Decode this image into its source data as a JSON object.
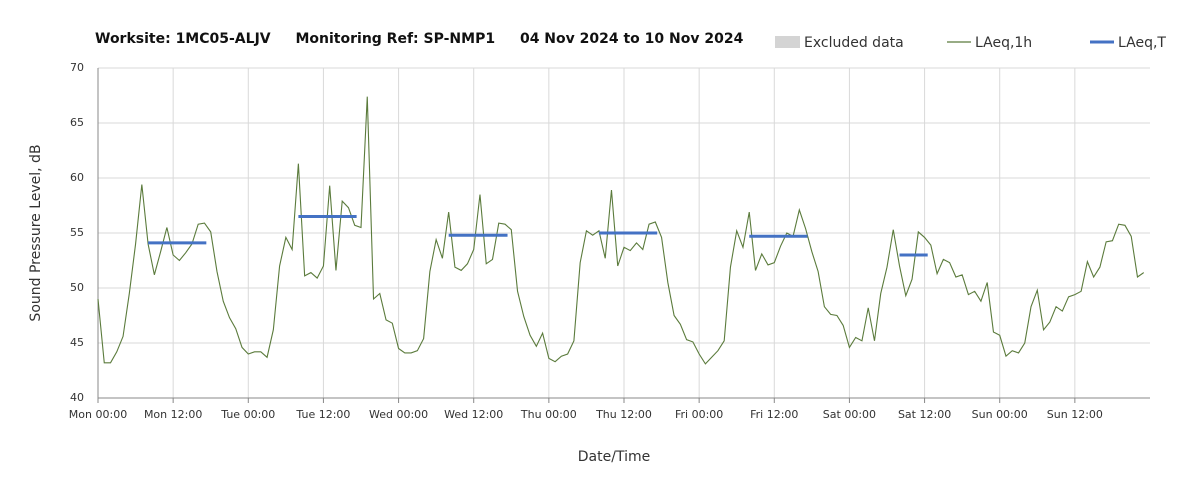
{
  "chart_data": {
    "type": "line",
    "title_parts": [
      "Worksite: 1MC05-ALJV",
      "Monitoring Ref: SP-NMP1",
      "04 Nov 2024 to 10 Nov 2024"
    ],
    "xlabel": "Date/Time",
    "ylabel": "Sound Pressure Level, dB",
    "legend": [
      {
        "name": "Excluded data",
        "color": "#d4d4d4"
      }
    ],
    "xlim": [
      0,
      168
    ],
    "xticks": [
      {
        "value": 0,
        "label": "Mon 00:00"
      },
      {
        "value": 12,
        "label": "Mon 12:00"
      },
      {
        "value": 24,
        "label": "Tue 00:00"
      },
      {
        "value": 36,
        "label": "Tue 12:00"
      },
      {
        "value": 48,
        "label": "Wed 00:00"
      },
      {
        "value": 60,
        "label": "Wed 12:00"
      },
      {
        "value": 72,
        "label": "Thu 00:00"
      },
      {
        "value": 84,
        "label": "Thu 12:00"
      },
      {
        "value": 96,
        "label": "Fri 00:00"
      },
      {
        "value": 108,
        "label": "Fri 12:00"
      },
      {
        "value": 120,
        "label": "Sat 00:00"
      },
      {
        "value": 132,
        "label": "Sat 12:00"
      },
      {
        "value": 144,
        "label": "Sun 00:00"
      },
      {
        "value": 156,
        "label": "Sun 12:00"
      }
    ],
    "ylim": [
      40,
      70
    ],
    "yticks": [
      40,
      45,
      50,
      55,
      60,
      65,
      70
    ],
    "grid": true,
    "x": [
      0,
      1,
      2,
      3,
      4,
      5,
      6,
      7,
      8,
      9,
      10,
      11,
      12,
      13,
      14,
      15,
      16,
      17,
      18,
      19,
      20,
      21,
      22,
      23,
      24,
      25,
      26,
      27,
      28,
      29,
      30,
      31,
      32,
      33,
      34,
      35,
      36,
      37,
      38,
      39,
      40,
      41,
      42,
      43,
      44,
      45,
      46,
      47,
      48,
      49,
      50,
      51,
      52,
      53,
      54,
      55,
      56,
      57,
      58,
      59,
      60,
      61,
      62,
      63,
      64,
      65,
      66,
      67,
      68,
      69,
      70,
      71,
      72,
      73,
      74,
      75,
      76,
      77,
      78,
      79,
      80,
      81,
      82,
      83,
      84,
      85,
      86,
      87,
      88,
      89,
      90,
      91,
      92,
      93,
      94,
      95,
      96,
      97,
      98,
      99,
      100,
      101,
      102,
      103,
      104,
      105,
      106,
      107,
      108,
      109,
      110,
      111,
      112,
      113,
      114,
      115,
      116,
      117,
      118,
      119,
      120,
      121,
      122,
      123,
      124,
      125,
      126,
      127,
      128,
      129,
      130,
      131,
      132,
      133,
      134,
      135,
      136,
      137,
      138,
      139,
      140,
      141,
      142,
      143,
      144,
      145,
      146,
      147,
      148,
      149,
      150,
      151,
      152,
      153,
      154,
      155,
      156,
      157,
      158,
      159,
      160,
      161,
      162,
      163,
      164,
      165,
      166,
      167
    ],
    "series": [
      {
        "name": "LAeq,1h",
        "color": "#5b7b3c",
        "values": [
          49,
          43.2,
          43.2,
          44.2,
          45.6,
          49.5,
          54,
          59.4,
          54,
          51.2,
          53.3,
          55.5,
          53,
          52.5,
          53.2,
          54,
          55.8,
          55.9,
          55.1,
          51.5,
          48.8,
          47.3,
          46.3,
          44.6,
          44,
          44.2,
          44.2,
          43.7,
          46.2,
          52,
          54.6,
          53.5,
          61.3,
          51.1,
          51.4,
          50.9,
          52,
          59.3,
          51.6,
          57.9,
          57.3,
          55.7,
          55.5,
          67.4,
          49,
          49.5,
          47.1,
          46.8,
          44.5,
          44.1,
          44.1,
          44.3,
          45.4,
          51.5,
          54.4,
          52.7,
          56.9,
          51.9,
          51.6,
          52.2,
          53.5,
          58.5,
          52.2,
          52.6,
          55.9,
          55.8,
          55.3,
          49.7,
          47.4,
          45.7,
          44.7,
          45.9,
          43.6,
          43.3,
          43.8,
          44,
          45.2,
          52.3,
          55.2,
          54.8,
          55.2,
          52.7,
          58.9,
          52,
          53.7,
          53.4,
          54.1,
          53.5,
          55.8,
          56,
          54.6,
          50.5,
          47.5,
          46.7,
          45.3,
          45.1,
          44,
          43.1,
          43.7,
          44.3,
          45.2,
          51.9,
          55.2,
          53.7,
          56.9,
          51.6,
          53.1,
          52.1,
          52.3,
          53.8,
          55,
          54.7,
          57.1,
          55.4,
          53.3,
          51.5,
          48.3,
          47.6,
          47.5,
          46.6,
          44.6,
          45.5,
          45.2,
          48.2,
          45.2,
          49.5,
          51.9,
          55.3,
          52,
          49.3,
          50.8,
          55.1,
          54.6,
          53.9,
          51.3,
          52.6,
          52.3,
          51,
          51.2,
          49.4,
          49.7,
          48.8,
          50.5,
          46,
          45.7,
          43.8,
          44.3,
          44.1,
          45,
          48.3,
          49.8,
          46.2,
          46.9,
          48.3,
          47.9,
          49.2,
          49.4,
          49.7,
          52.4,
          51,
          51.9,
          54.2,
          54.3,
          55.8,
          55.7,
          54.7,
          51,
          51.4
        ]
      },
      {
        "name": "LAeq,T",
        "color": "#4472c4",
        "segments": [
          {
            "x": [
              8,
              17.3
            ],
            "value": 54.1
          },
          {
            "x": [
              32,
              41.3
            ],
            "value": 56.5
          },
          {
            "x": [
              56,
              65.4
            ],
            "value": 54.8
          },
          {
            "x": [
              80,
              89.3
            ],
            "value": 55
          },
          {
            "x": [
              104,
              113.3
            ],
            "value": 54.7
          },
          {
            "x": [
              128,
              132.5
            ],
            "value": 53
          }
        ]
      }
    ]
  }
}
